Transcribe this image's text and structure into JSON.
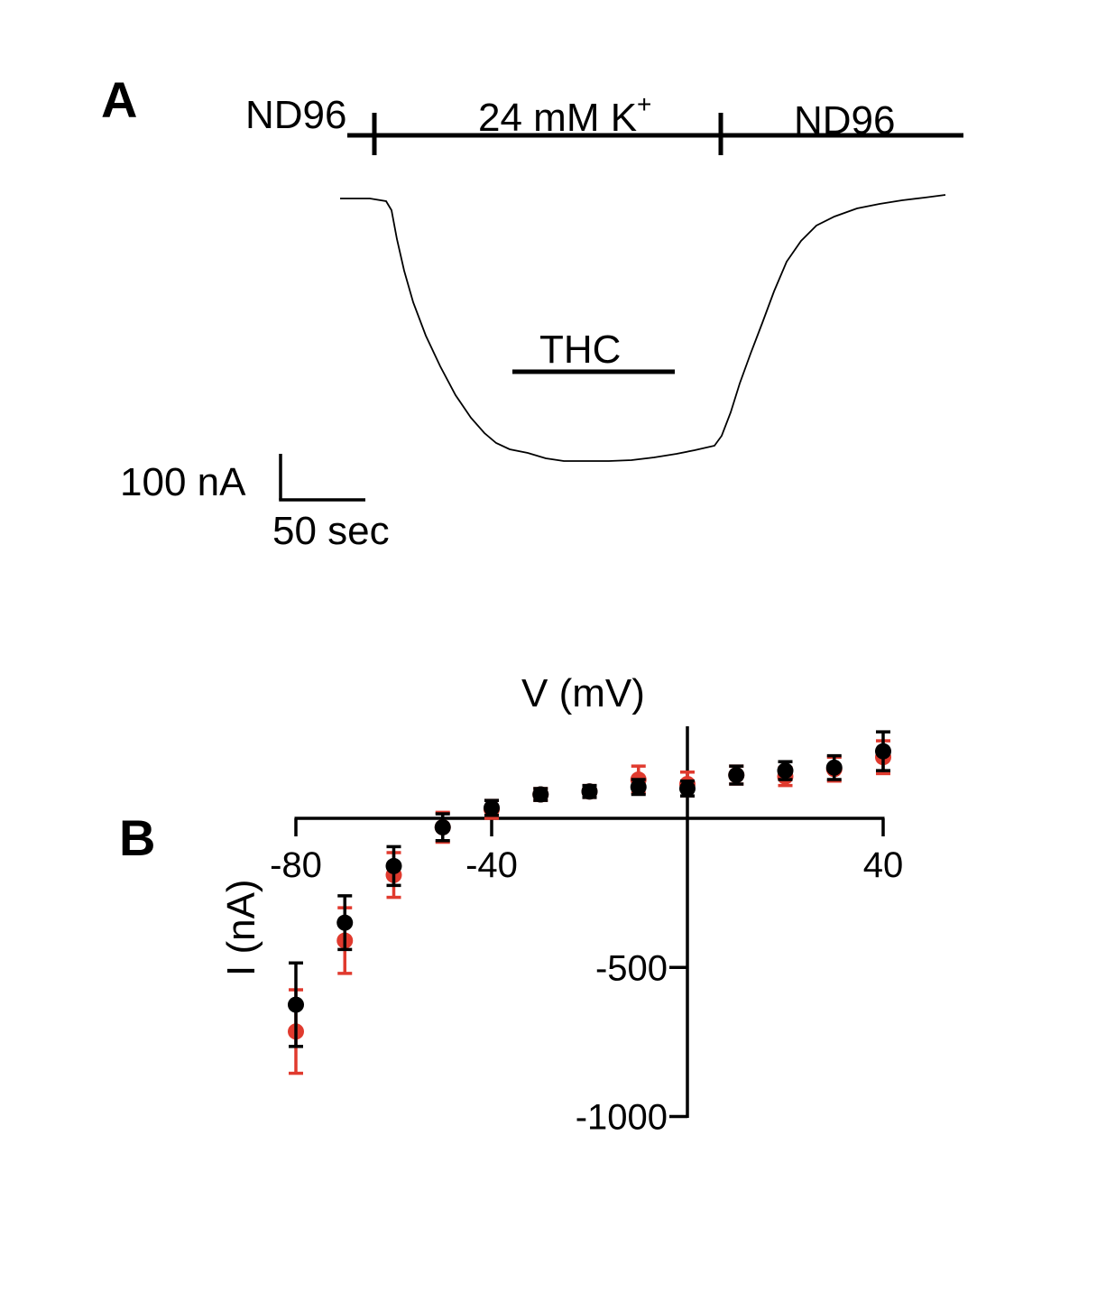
{
  "panel_a": {
    "letter": "A",
    "solution_bar": {
      "left_label": "ND96",
      "middle_label": "24 mM K",
      "middle_superscript": "+",
      "right_label": "ND96"
    },
    "drug_label": "THC",
    "scale_bar": {
      "current_label": "100 nA",
      "time_label": "50 sec"
    }
  },
  "panel_b": {
    "letter": "B"
  },
  "chart_data": {
    "type": "scatter",
    "xlabel": "V (mV)",
    "ylabel": "I (nA)",
    "xlim": [
      -80,
      40
    ],
    "ylim": [
      -1000,
      200
    ],
    "x_ticks": [
      -80,
      -40,
      40
    ],
    "x_tick_labels": [
      "-80",
      "-40",
      "40"
    ],
    "y_ticks": [
      -500,
      -1000
    ],
    "y_tick_labels": [
      "-500",
      "-1000"
    ],
    "grid": false,
    "colors": {
      "series_1": "#000000",
      "series_2": "#e03a2e"
    },
    "x": [
      -80,
      -70,
      -60,
      -50,
      -40,
      -30,
      -20,
      -10,
      0,
      10,
      20,
      30,
      40
    ],
    "series": [
      {
        "values": [
          -625,
          -350,
          -160,
          -30,
          35,
          80,
          90,
          105,
          100,
          145,
          160,
          170,
          225
        ],
        "errors": [
          140,
          90,
          65,
          45,
          25,
          20,
          20,
          25,
          25,
          30,
          30,
          40,
          65
        ]
      },
      {
        "values": [
          -715,
          -410,
          -190,
          -30,
          30,
          80,
          90,
          130,
          115,
          145,
          140,
          165,
          205
        ],
        "errors": [
          140,
          110,
          75,
          50,
          30,
          20,
          20,
          45,
          40,
          30,
          30,
          40,
          55
        ]
      }
    ]
  }
}
